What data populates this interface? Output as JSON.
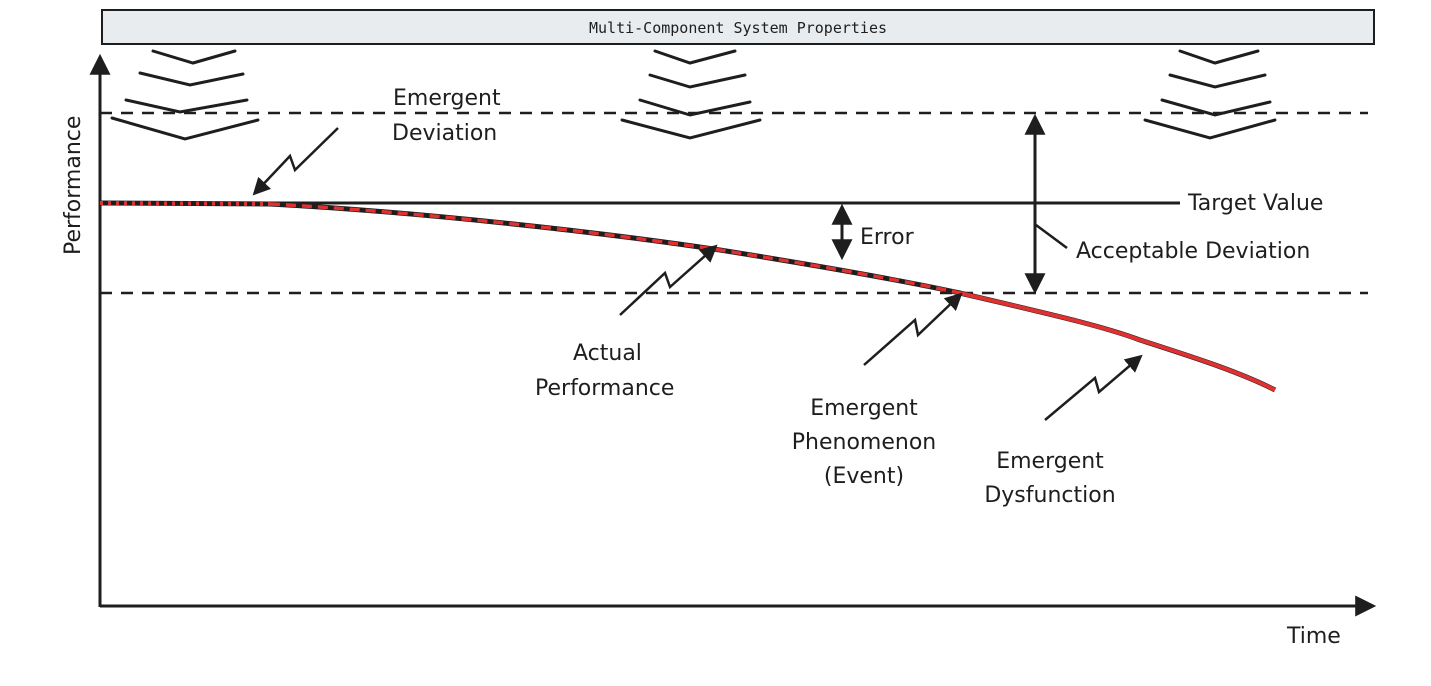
{
  "title": "Multi-Component System Properties",
  "axes": {
    "y_label": "Performance",
    "x_label": "Time"
  },
  "labels": {
    "emergent_deviation": [
      "Emergent",
      "Deviation"
    ],
    "target_value": "Target Value",
    "error": "Error",
    "acceptable_deviation": "Acceptable Deviation",
    "actual_performance": [
      "Actual",
      "Performance"
    ],
    "emergent_phenomenon": [
      "Emergent",
      "Phenomenon",
      "(Event)"
    ],
    "emergent_dysfunction": [
      "Emergent",
      "Dysfunction"
    ]
  },
  "colors": {
    "stroke": "#1e1e1e",
    "curve_highlight": "#e03131",
    "title_bg": "#e9ecef"
  }
}
